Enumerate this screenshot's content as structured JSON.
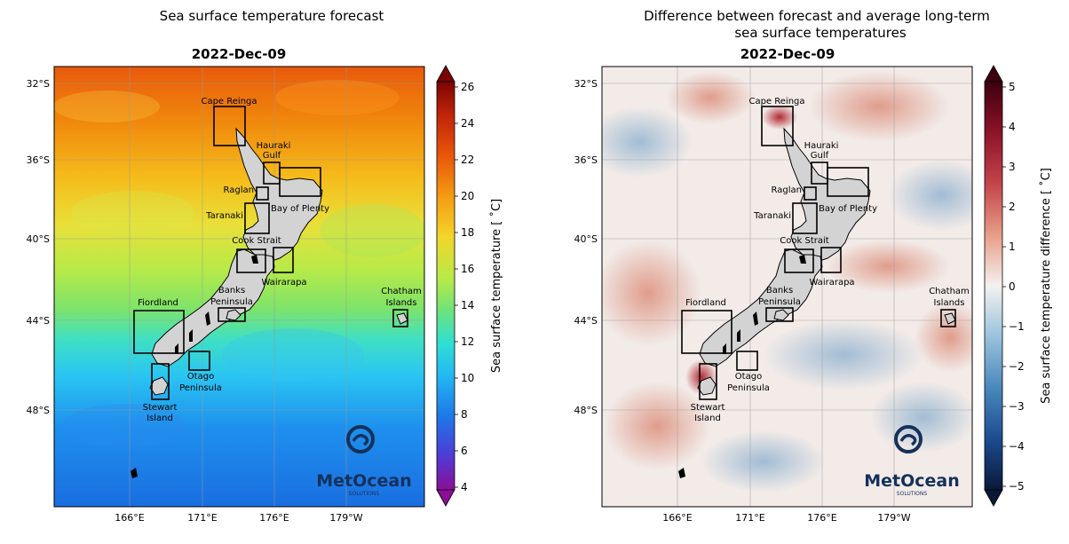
{
  "left_panel": {
    "title": "Sea surface temperature forecast",
    "date": "2022-Dec-09",
    "colorbar": {
      "label": "Sea surface temperature [ ˚C]",
      "ticks": [
        "4",
        "6",
        "8",
        "10",
        "12",
        "14",
        "16",
        "18",
        "20",
        "22",
        "24",
        "26"
      ]
    }
  },
  "right_panel": {
    "title_line1": "Difference between forecast and average long-term",
    "title_line2": "sea surface temperatures",
    "date": "2022-Dec-09",
    "colorbar": {
      "label": "Sea surface temperature difference [ ˚C]",
      "ticks": [
        "5",
        "4",
        "3",
        "2",
        "1",
        "0",
        "−1",
        "−2",
        "−3",
        "−4",
        "−5"
      ]
    }
  },
  "axes": {
    "lat_labels": [
      "32°S",
      "36°S",
      "40°S",
      "44°S",
      "48°S"
    ],
    "lon_labels": [
      "166°E",
      "171°E",
      "176°E",
      "179°W"
    ]
  },
  "regions": {
    "cape_reinga": "Cape Reinga",
    "hauraki_1": "Hauraki",
    "hauraki_2": "Gulf",
    "raglan": "Raglan",
    "bay_of_plenty": "Bay of Plenty",
    "taranaki": "Taranaki",
    "cook_strait": "Cook Strait",
    "wairarapa": "Wairarapa",
    "banks_1": "Banks",
    "banks_2": "Peninsula",
    "fiordland": "Fiordland",
    "otago_1": "Otago",
    "otago_2": "Peninsula",
    "stewart_1": "Stewart",
    "stewart_2": "Island",
    "chatham_1": "Chatham",
    "chatham_2": "Islands"
  },
  "logo": {
    "name": "MetOcean",
    "sub": "SOLUTIONS"
  },
  "colors": {
    "land": "#d3d3d3",
    "boxes": "#000000",
    "sst_warm": "#e8560a",
    "sst_cool": "#1f7de3",
    "diff_pos": "#b2182b",
    "diff_neg": "#2166ac"
  }
}
